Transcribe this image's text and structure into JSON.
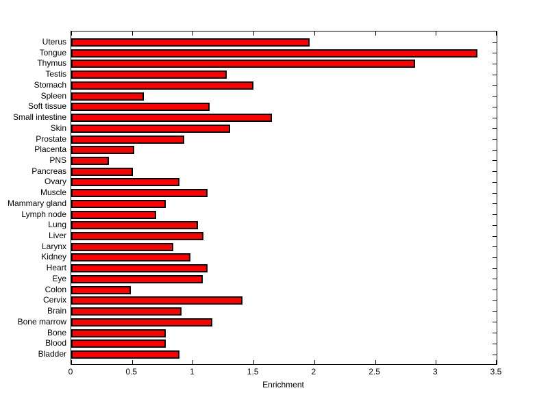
{
  "chart_data": {
    "type": "bar",
    "orientation": "horizontal",
    "title": "",
    "xlabel": "Enrichment",
    "ylabel": "",
    "xlim": [
      0,
      3.5
    ],
    "x_ticks": [
      0,
      0.5,
      1,
      1.5,
      2,
      2.5,
      3,
      3.5
    ],
    "x_tick_labels": [
      "0",
      "0.5",
      "1",
      "1.5",
      "2",
      "2.5",
      "3",
      "3.5"
    ],
    "grid": "off",
    "legend": "none",
    "bar_color": "#ff0000",
    "bar_edge_color": "#000000",
    "background_color": "#ffffff",
    "axis_color": "#000000",
    "categories": [
      "Uterus",
      "Tongue",
      "Thymus",
      "Testis",
      "Stomach",
      "Spleen",
      "Soft tissue",
      "Small intestine",
      "Skin",
      "Prostate",
      "Placenta",
      "PNS",
      "Pancreas",
      "Ovary",
      "Muscle",
      "Mammary gland",
      "Lymph node",
      "Lung",
      "Liver",
      "Larynx",
      "Kidney",
      "Heart",
      "Eye",
      "Colon",
      "Cervix",
      "Brain",
      "Bone marrow",
      "Bone",
      "Blood",
      "Bladder"
    ],
    "values": [
      1.96,
      3.34,
      2.83,
      1.28,
      1.5,
      0.6,
      1.14,
      1.65,
      1.31,
      0.93,
      0.52,
      0.31,
      0.51,
      0.89,
      1.12,
      0.78,
      0.7,
      1.04,
      1.09,
      0.84,
      0.98,
      1.12,
      1.08,
      0.49,
      1.41,
      0.91,
      1.16,
      0.78,
      0.78,
      0.89
    ]
  }
}
